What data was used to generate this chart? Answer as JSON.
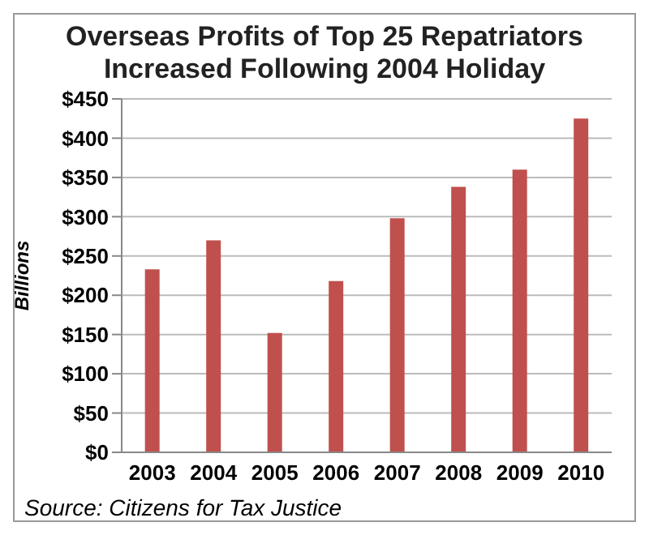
{
  "chart_data": {
    "type": "bar",
    "title": "Overseas Profits of Top 25 Repatriators Increased Following 2004 Holiday",
    "ylabel": "Billions",
    "categories": [
      "2003",
      "2004",
      "2005",
      "2006",
      "2007",
      "2008",
      "2009",
      "2010"
    ],
    "values": [
      233,
      270,
      152,
      218,
      298,
      338,
      360,
      425
    ],
    "color": "#c0504d",
    "ylim": [
      0,
      450
    ],
    "yticks": [
      {
        "value": 0,
        "label": "$0"
      },
      {
        "value": 50,
        "label": "$50"
      },
      {
        "value": 100,
        "label": "$100"
      },
      {
        "value": 150,
        "label": "$150"
      },
      {
        "value": 200,
        "label": "$200"
      },
      {
        "value": 250,
        "label": "$250"
      },
      {
        "value": 300,
        "label": "$300"
      },
      {
        "value": 350,
        "label": "$350"
      },
      {
        "value": 400,
        "label": "$400"
      },
      {
        "value": 450,
        "label": "$450"
      }
    ],
    "grid": "y",
    "annotations": [
      "Source: Citizens for Tax Justice"
    ]
  }
}
